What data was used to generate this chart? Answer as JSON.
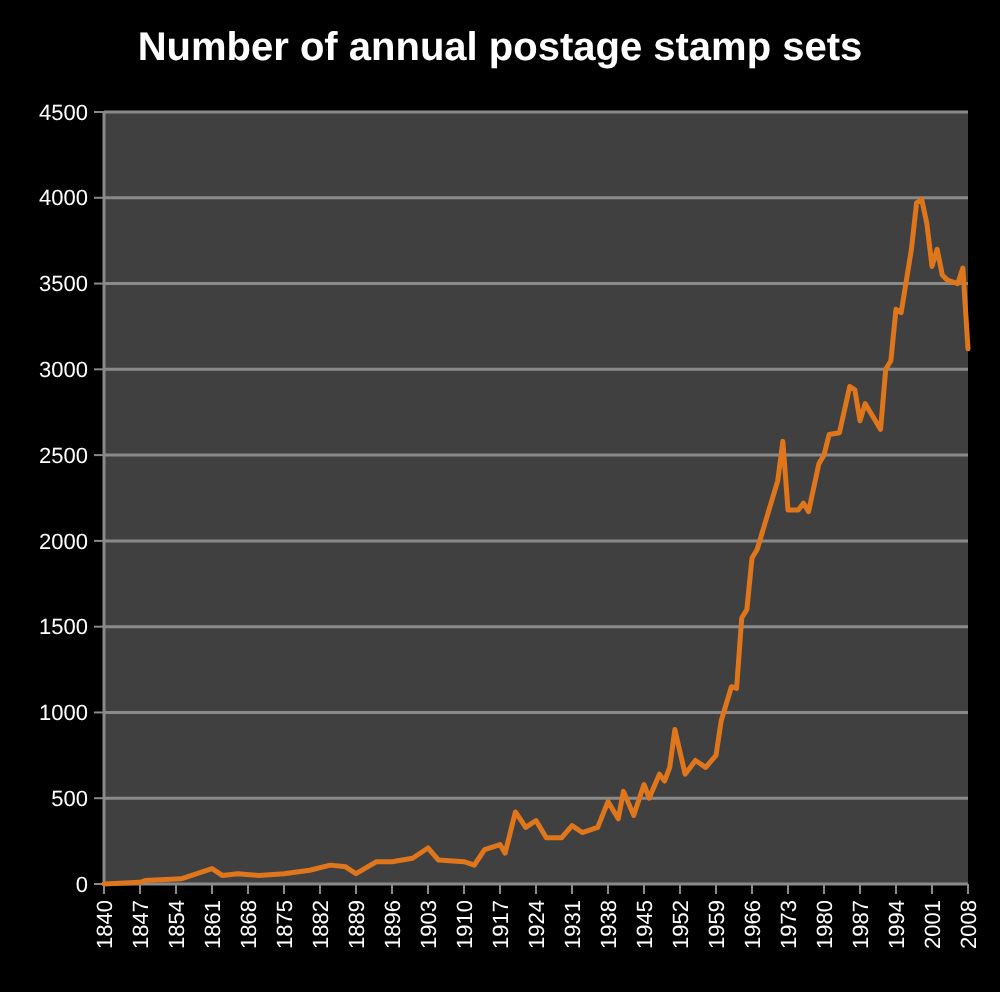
{
  "chart_data": {
    "type": "line",
    "title": "Number of annual postage stamp sets",
    "x": [
      1840,
      1847,
      1848,
      1855,
      1861,
      1863,
      1866,
      1870,
      1875,
      1880,
      1884,
      1887,
      1889,
      1893,
      1896,
      1900,
      1903,
      1905,
      1910,
      1912,
      1914,
      1917,
      1918,
      1920,
      1922,
      1924,
      1926,
      1929,
      1931,
      1933,
      1936,
      1938,
      1940,
      1941,
      1943,
      1945,
      1946,
      1948,
      1949,
      1950,
      1951,
      1953,
      1955,
      1957,
      1959,
      1960,
      1962,
      1963,
      1964,
      1965,
      1966,
      1967,
      1969,
      1971,
      1972,
      1973,
      1975,
      1976,
      1977,
      1979,
      1980,
      1981,
      1983,
      1985,
      1986,
      1987,
      1988,
      1990,
      1991,
      1992,
      1993,
      1994,
      1995,
      1997,
      1998,
      1999,
      2000,
      2001,
      2002,
      2003,
      2004,
      2006,
      2007,
      2008
    ],
    "series": [
      {
        "color": "#e0761c",
        "values": [
          0,
          10,
          20,
          30,
          90,
          50,
          60,
          50,
          60,
          80,
          110,
          100,
          60,
          130,
          130,
          150,
          210,
          140,
          130,
          110,
          200,
          230,
          180,
          420,
          330,
          370,
          270,
          270,
          340,
          300,
          330,
          480,
          380,
          540,
          400,
          580,
          500,
          640,
          600,
          680,
          900,
          640,
          720,
          680,
          750,
          950,
          1150,
          1140,
          1550,
          1600,
          1900,
          1950,
          2150,
          2350,
          2580,
          2180,
          2180,
          2220,
          2170,
          2450,
          2500,
          2620,
          2630,
          2900,
          2880,
          2700,
          2800,
          2700,
          2650,
          3000,
          3050,
          3350,
          3330,
          3700,
          3970,
          3990,
          3850,
          3600,
          3700,
          3550,
          3520,
          3500,
          3590,
          3120
        ]
      }
    ],
    "xlim": [
      1840,
      2008
    ],
    "xticks": [
      1840,
      1847,
      1854,
      1861,
      1868,
      1875,
      1882,
      1889,
      1896,
      1903,
      1910,
      1917,
      1924,
      1931,
      1938,
      1945,
      1952,
      1959,
      1966,
      1973,
      1980,
      1987,
      1994,
      2001,
      2008
    ],
    "ylim": [
      0,
      4500
    ],
    "yticks": [
      0,
      500,
      1000,
      1500,
      2000,
      2500,
      3000,
      3500,
      4000,
      4500
    ],
    "grid": "y",
    "marker": "none",
    "line_style": "solid"
  }
}
